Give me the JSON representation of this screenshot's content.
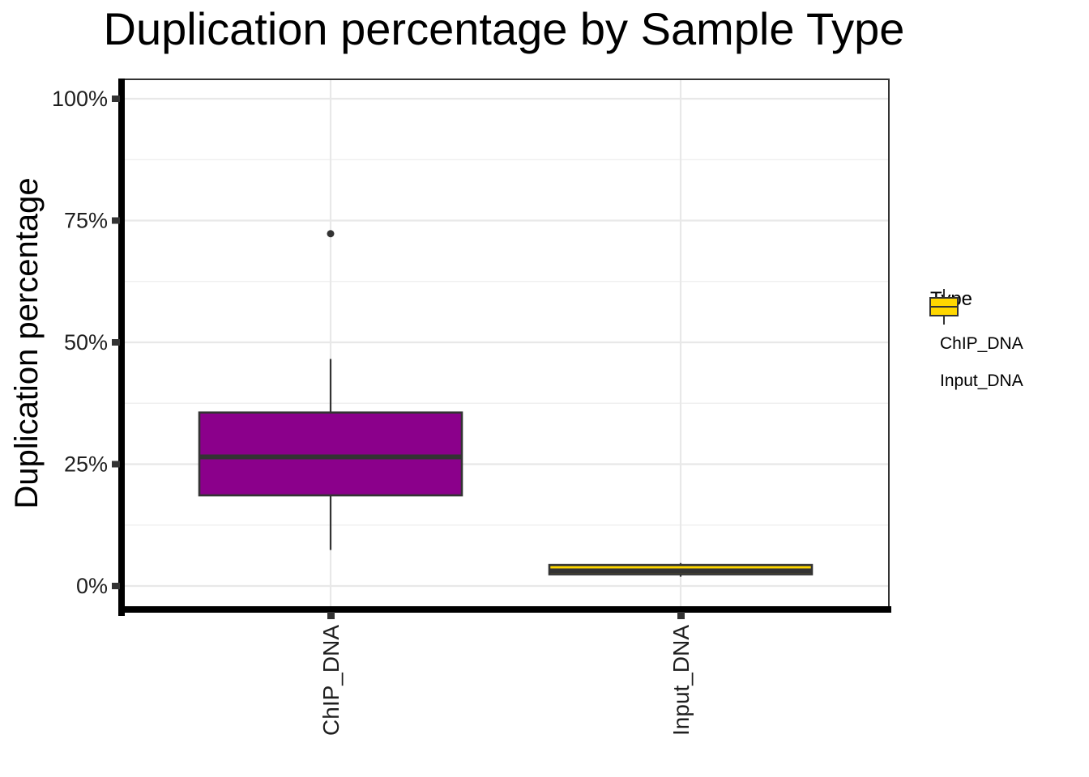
{
  "chart_data": {
    "type": "boxplot",
    "title": "Duplication percentage by Sample Type",
    "xlabel": "",
    "ylabel": "Duplication percentage",
    "categories": [
      "ChIP_DNA",
      "Input_DNA"
    ],
    "y_axis": {
      "unit": "%",
      "range": [
        0,
        100
      ],
      "ticks": [
        0,
        25,
        50,
        75,
        100
      ],
      "tick_labels": [
        "0%",
        "25%",
        "50%",
        "75%",
        "100%"
      ],
      "minor_ticks": [
        12.5,
        37.5,
        62.5,
        87.5
      ]
    },
    "grid": true,
    "series": [
      {
        "name": "ChIP_DNA",
        "fill": "#8B008B",
        "whisker_low": 7.4,
        "q1": 18.6,
        "median": 26.5,
        "q3": 35.6,
        "whisker_high": 46.6,
        "outliers": [
          72.3
        ]
      },
      {
        "name": "Input_DNA",
        "fill": "#FFD700",
        "whisker_low": 1.9,
        "q1": 2.4,
        "median": 3.1,
        "q3": 4.3,
        "whisker_high": 4.7,
        "outliers": []
      }
    ],
    "legend": {
      "title": "Type",
      "position": "right",
      "entries": [
        {
          "label": "ChIP_DNA",
          "color": "#8B008B"
        },
        {
          "label": "Input_DNA",
          "color": "#FFD700"
        }
      ]
    },
    "colors": {
      "box_border": "#333333",
      "grid_major": "#e8e8e8",
      "grid_minor": "#f0f0f0",
      "axis_line": "#000000",
      "panel_border": "#333333"
    }
  }
}
